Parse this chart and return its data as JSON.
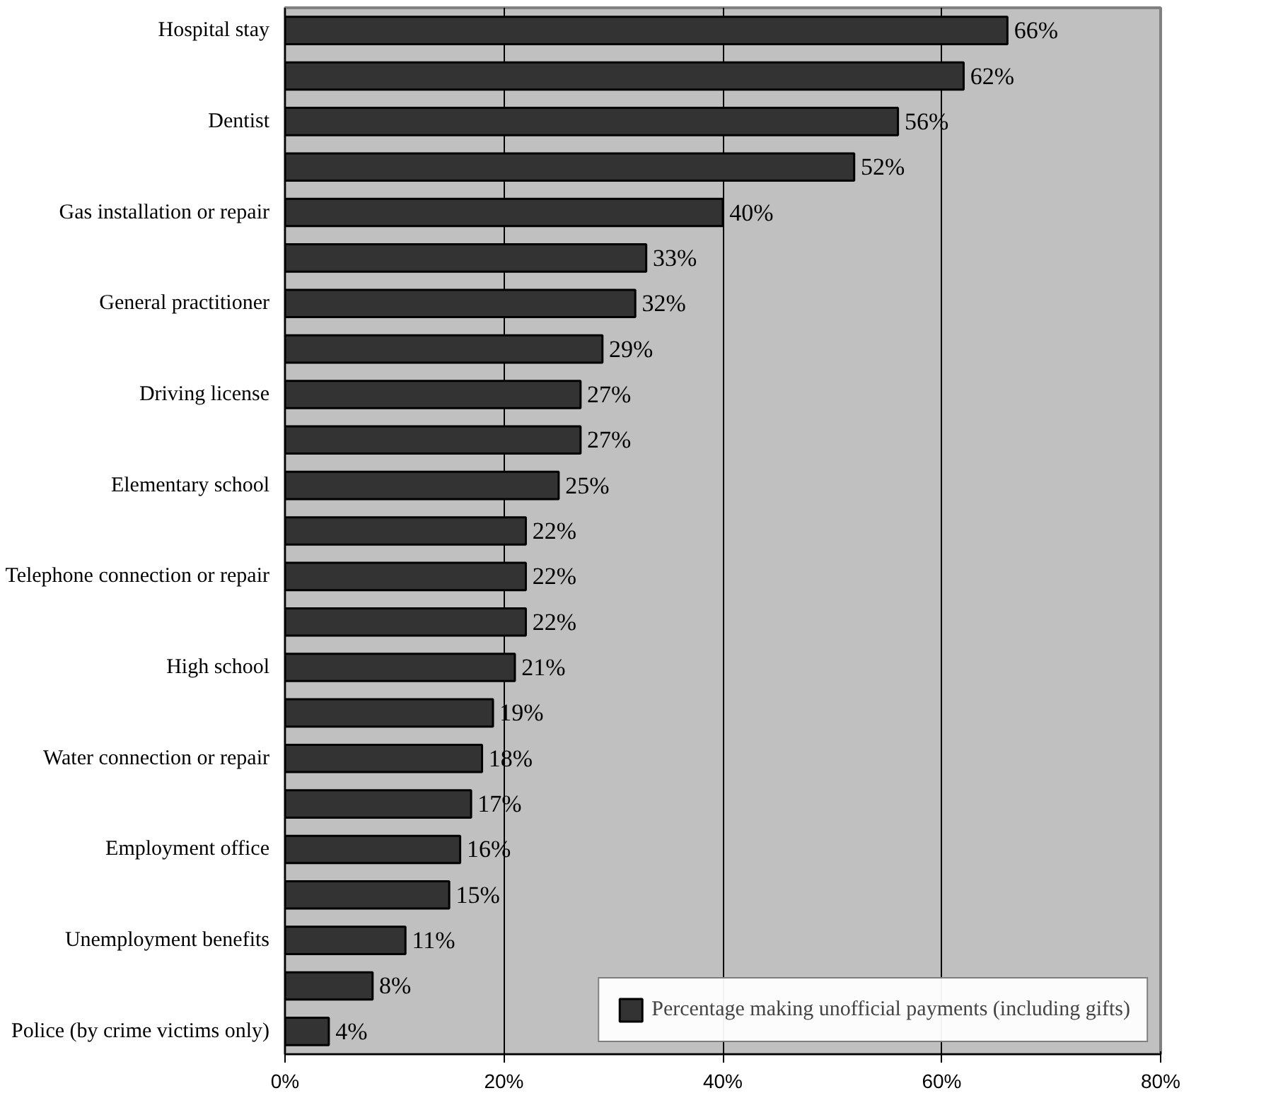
{
  "chart_data": {
    "type": "bar",
    "orientation": "horizontal",
    "categories": [
      "Hospital stay",
      null,
      "Dentist",
      null,
      "Gas installation or repair",
      null,
      "General practitioner",
      null,
      "Driving license",
      null,
      "Elementary school",
      null,
      "Telephone connection or repair",
      null,
      "High school",
      null,
      "Water connection or repair",
      null,
      "Employment office",
      null,
      "Unemployment benefits",
      null,
      "Police (by crime victims only)"
    ],
    "series": [
      {
        "name": "Percentage making unofficial payments (including gifts)",
        "color": "#333333",
        "values": [
          66,
          62,
          56,
          52,
          40,
          33,
          32,
          29,
          27,
          27,
          25,
          22,
          22,
          22,
          21,
          19,
          18,
          17,
          16,
          15,
          11,
          8,
          4
        ],
        "value_labels": [
          "66%",
          "62%",
          "56%",
          "52%",
          "40%",
          "33%",
          "32%",
          "29%",
          "27%",
          "27%",
          "25%",
          "22%",
          "22%",
          "22%",
          "21%",
          "19%",
          "18%",
          "17%",
          "16%",
          "15%",
          "11%",
          "8%",
          "4%"
        ]
      }
    ],
    "xlim": [
      0,
      80
    ],
    "xticks": [
      {
        "value": 0,
        "label": "0%"
      },
      {
        "value": 20,
        "label": "20%"
      },
      {
        "value": 40,
        "label": "40%"
      },
      {
        "value": 60,
        "label": "60%"
      },
      {
        "value": 80,
        "label": "80%"
      }
    ],
    "grid": "x",
    "legend": "bottom right"
  }
}
